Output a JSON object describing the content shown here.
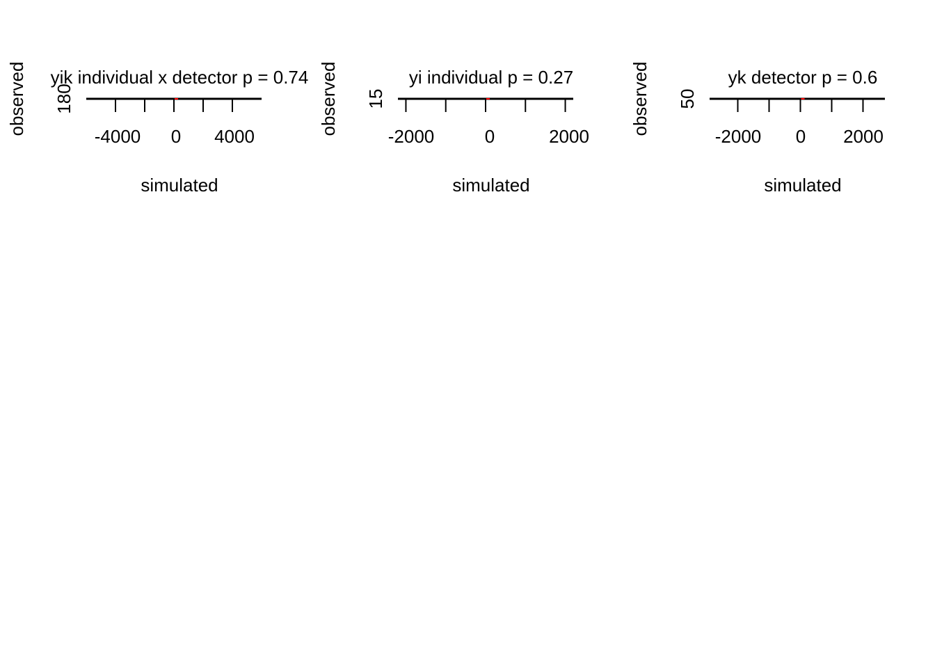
{
  "chart_data": [
    {
      "type": "scatter",
      "title": "yik individual x detector  p = 0.74",
      "xlabel": "simulated",
      "ylabel": "observed",
      "xlim": [
        -6000,
        6000
      ],
      "x_ticks": [
        -4000,
        -2000,
        0,
        2000,
        4000
      ],
      "x_tick_labels": [
        "-4000",
        "0",
        "4000"
      ],
      "y_ticks": [
        180
      ],
      "y_tick_labels": [
        "180"
      ],
      "identity_line": true,
      "points_color": "#000000",
      "marker_color": "#ff0000"
    },
    {
      "type": "scatter",
      "title": "yi individual  p = 0.27",
      "xlabel": "simulated",
      "ylabel": "observed",
      "xlim": [
        -2200,
        2200
      ],
      "x_ticks": [
        -2000,
        -1000,
        0,
        1000,
        2000
      ],
      "x_tick_labels": [
        "-2000",
        "0",
        "2000"
      ],
      "y_ticks": [
        15
      ],
      "y_tick_labels": [
        "15"
      ],
      "identity_line": true,
      "points_color": "#000000",
      "marker_color": "#ff0000"
    },
    {
      "type": "scatter",
      "title": "yk detector  p = 0.6",
      "xlabel": "simulated",
      "ylabel": "observed",
      "xlim": [
        -2900,
        2700
      ],
      "x_ticks": [
        -2000,
        -1000,
        0,
        1000,
        2000
      ],
      "x_tick_labels": [
        "-2000",
        "0",
        "2000"
      ],
      "y_ticks": [
        50
      ],
      "y_tick_labels": [
        "50"
      ],
      "identity_line": true,
      "points_color": "#000000",
      "marker_color": "#ff0000"
    }
  ]
}
